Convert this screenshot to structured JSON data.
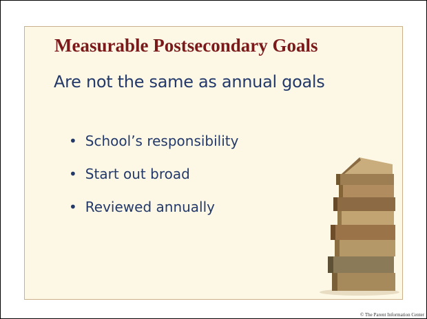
{
  "title": "Measurable Postsecondary Goals",
  "subtitle": "Are not the same as annual goals",
  "bullets": [
    "School’s responsibility",
    "Start out broad",
    "Reviewed annually"
  ],
  "footer": "© The Parent Information Center"
}
